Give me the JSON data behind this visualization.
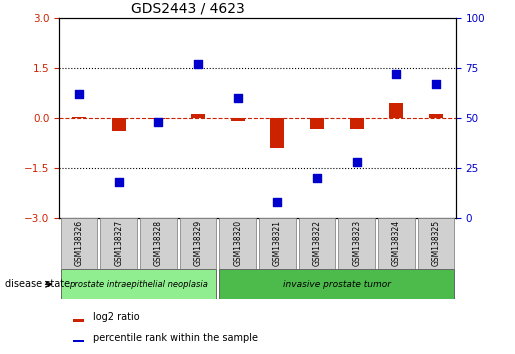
{
  "title": "GDS2443 / 4623",
  "samples": [
    "GSM138326",
    "GSM138327",
    "GSM138328",
    "GSM138329",
    "GSM138320",
    "GSM138321",
    "GSM138322",
    "GSM138323",
    "GSM138324",
    "GSM138325"
  ],
  "log2_ratio": [
    0.03,
    -0.4,
    -0.05,
    0.1,
    -0.1,
    -0.9,
    -0.35,
    -0.35,
    0.45,
    0.1
  ],
  "percentile_rank": [
    62,
    18,
    48,
    77,
    60,
    8,
    20,
    28,
    72,
    67
  ],
  "ylim_left": [
    -3,
    3
  ],
  "ylim_right": [
    0,
    100
  ],
  "yticks_left": [
    -3,
    -1.5,
    0,
    1.5,
    3
  ],
  "yticks_right": [
    0,
    25,
    50,
    75,
    100
  ],
  "hlines": [
    1.5,
    -1.5
  ],
  "disease_groups": [
    {
      "label": "prostate intraepithelial neoplasia",
      "indices": [
        0,
        3
      ],
      "color": "#90EE90"
    },
    {
      "label": "invasive prostate tumor",
      "indices": [
        4,
        9
      ],
      "color": "#4CBB4C"
    }
  ],
  "bar_color": "#CC2200",
  "dot_color": "#0000CC",
  "xlabel": "disease state",
  "legend_items": [
    {
      "label": "log2 ratio",
      "color": "#CC2200"
    },
    {
      "label": "percentile rank within the sample",
      "color": "#0000CC"
    }
  ],
  "background_color": "#ffffff",
  "tick_label_color_left": "#CC2200",
  "tick_label_color_right": "#0000CC",
  "bar_width": 0.35,
  "dot_size": 28
}
